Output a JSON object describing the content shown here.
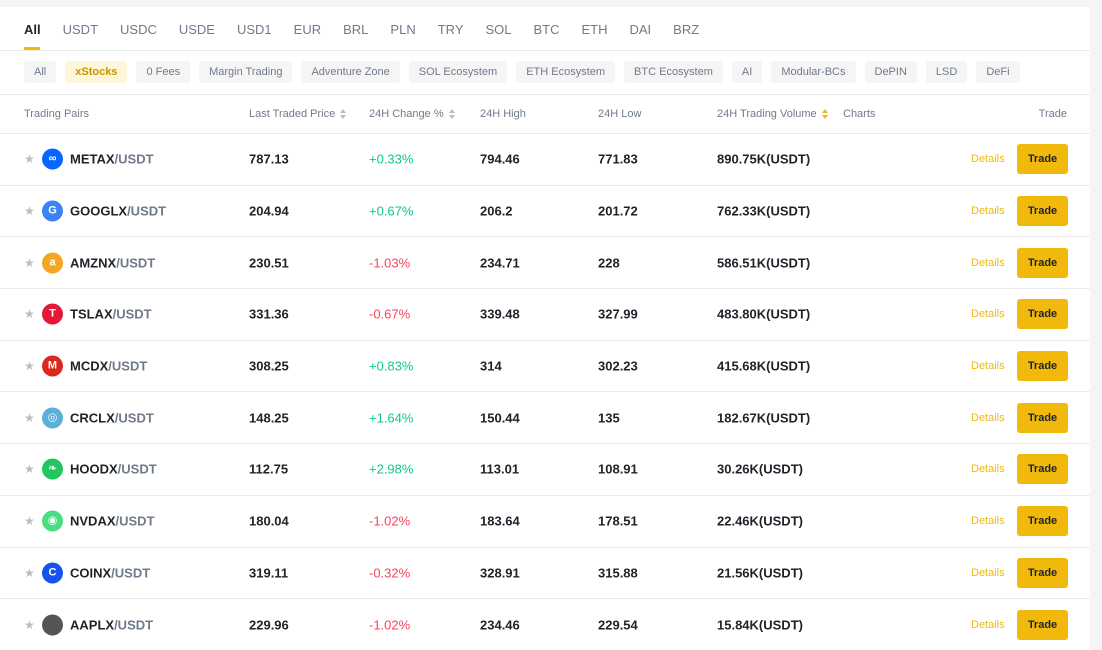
{
  "quote_tabs": [
    "All",
    "USDT",
    "USDC",
    "USDE",
    "USD1",
    "EUR",
    "BRL",
    "PLN",
    "TRY",
    "SOL",
    "BTC",
    "ETH",
    "DAI",
    "BRZ"
  ],
  "active_quote_tab": "All",
  "category_chips": [
    "All",
    "xStocks",
    "0 Fees",
    "Margin Trading",
    "Adventure Zone",
    "SOL Ecosystem",
    "ETH Ecosystem",
    "BTC Ecosystem",
    "AI",
    "Modular-BCs",
    "DePIN",
    "LSD",
    "DeFi"
  ],
  "active_chip": "xStocks",
  "columns": {
    "pair": "Trading Pairs",
    "price": "Last Traded Price",
    "change": "24H Change %",
    "high": "24H High",
    "low": "24H Low",
    "volume": "24H Trading Volume",
    "charts": "Charts",
    "trade": "Trade"
  },
  "details_label": "Details",
  "trade_label": "Trade",
  "rows": [
    {
      "base": "METAX",
      "quote": "/USDT",
      "price": "787.13",
      "change": "+0.33%",
      "direction": "up",
      "high": "794.46",
      "low": "771.83",
      "volume": "890.75K(USDT)",
      "icon": "meta-logo-icon",
      "glyph": "∞",
      "color": "#0866ff"
    },
    {
      "base": "GOOGLX",
      "quote": "/USDT",
      "price": "204.94",
      "change": "+0.67%",
      "direction": "up",
      "high": "206.2",
      "low": "201.72",
      "volume": "762.33K(USDT)",
      "icon": "google-logo-icon",
      "glyph": "G",
      "color": "#3b82f6"
    },
    {
      "base": "AMZNX",
      "quote": "/USDT",
      "price": "230.51",
      "change": "-1.03%",
      "direction": "down",
      "high": "234.71",
      "low": "228",
      "volume": "586.51K(USDT)",
      "icon": "amazon-logo-icon",
      "glyph": "a",
      "color": "#f5a623"
    },
    {
      "base": "TSLAX",
      "quote": "/USDT",
      "price": "331.36",
      "change": "-0.67%",
      "direction": "down",
      "high": "339.48",
      "low": "327.99",
      "volume": "483.80K(USDT)",
      "icon": "tesla-logo-icon",
      "glyph": "T",
      "color": "#e31937"
    },
    {
      "base": "MCDX",
      "quote": "/USDT",
      "price": "308.25",
      "change": "+0.83%",
      "direction": "up",
      "high": "314",
      "low": "302.23",
      "volume": "415.68K(USDT)",
      "icon": "mcdonalds-logo-icon",
      "glyph": "M",
      "color": "#da291c"
    },
    {
      "base": "CRCLX",
      "quote": "/USDT",
      "price": "148.25",
      "change": "+1.64%",
      "direction": "up",
      "high": "150.44",
      "low": "135",
      "volume": "182.67K(USDT)",
      "icon": "circle-logo-icon",
      "glyph": "◎",
      "color": "#5ab0d6"
    },
    {
      "base": "HOODX",
      "quote": "/USDT",
      "price": "112.75",
      "change": "+2.98%",
      "direction": "up",
      "high": "113.01",
      "low": "108.91",
      "volume": "30.26K(USDT)",
      "icon": "robinhood-logo-icon",
      "glyph": "❧",
      "color": "#22c55e"
    },
    {
      "base": "NVDAX",
      "quote": "/USDT",
      "price": "180.04",
      "change": "-1.02%",
      "direction": "down",
      "high": "183.64",
      "low": "178.51",
      "volume": "22.46K(USDT)",
      "icon": "nvidia-logo-icon",
      "glyph": "◉",
      "color": "#4ade80"
    },
    {
      "base": "COINX",
      "quote": "/USDT",
      "price": "319.11",
      "change": "-0.32%",
      "direction": "down",
      "high": "328.91",
      "low": "315.88",
      "volume": "21.56K(USDT)",
      "icon": "coinbase-logo-icon",
      "glyph": "C",
      "color": "#1652f0"
    },
    {
      "base": "AAPLX",
      "quote": "/USDT",
      "price": "229.96",
      "change": "-1.02%",
      "direction": "down",
      "high": "234.46",
      "low": "229.54",
      "volume": "15.84K(USDT)",
      "icon": "apple-logo-icon",
      "glyph": "",
      "color": "#555555"
    }
  ]
}
